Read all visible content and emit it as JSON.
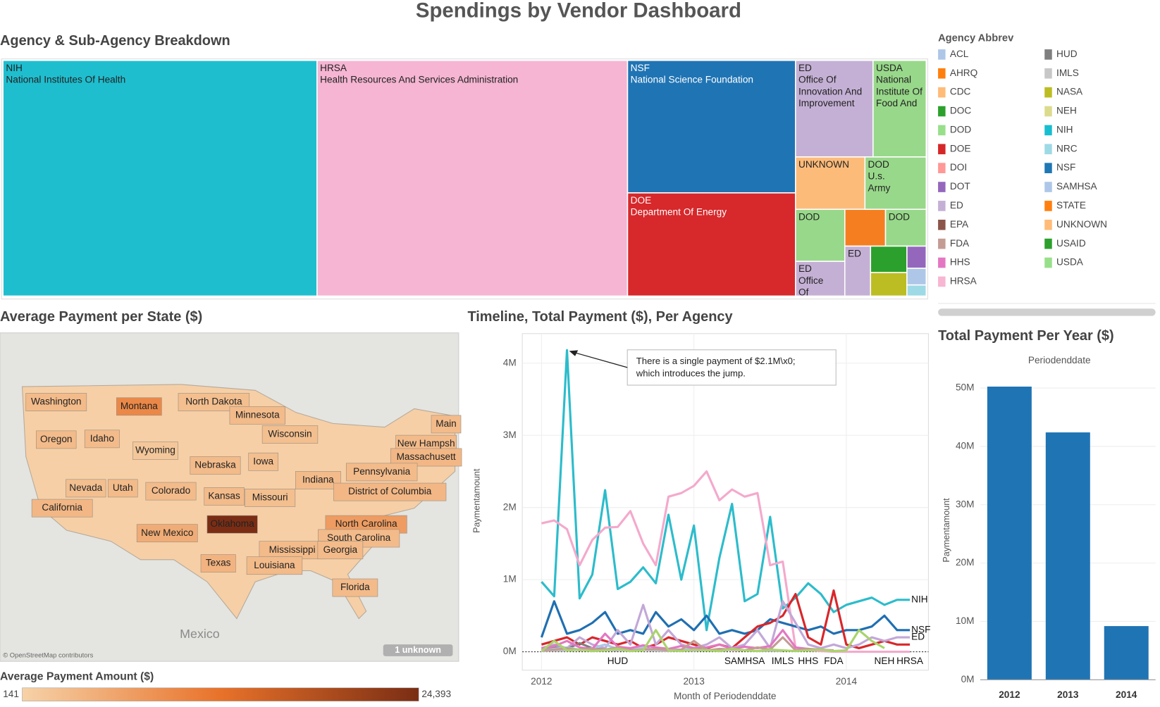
{
  "title": "Spendings by Vendor Dashboard",
  "chart_data": [
    {
      "type": "treemap",
      "title": "Agency & Sub-Agency Breakdown",
      "items": [
        {
          "label": [
            "NIH",
            "National Institutes Of Health"
          ],
          "value": 34600000,
          "color": "#1fbecf",
          "text_color": "#222222"
        },
        {
          "label": [
            "HRSA",
            "Health Resources And Services Administration"
          ],
          "value": 34200000,
          "color": "#f5b5d3",
          "text_color": "#222222"
        },
        {
          "label": [
            "NSF",
            "National Science Foundation"
          ],
          "value": 10400000,
          "color": "#1f74b4",
          "text_color": "#ffffff"
        },
        {
          "label": [
            "DOE",
            "Department Of Energy"
          ],
          "value": 8100000,
          "color": "#d7282b",
          "text_color": "#ffffff"
        },
        {
          "label": [
            "ED",
            "Office Of",
            "Innovation And",
            "Improvement"
          ],
          "value": 3500000,
          "color": "#c5b0d5",
          "text_color": "#222222"
        },
        {
          "label": [
            "USDA",
            "National",
            "Institute Of",
            "Food And"
          ],
          "value": 2400000,
          "color": "#98d88a",
          "text_color": "#222222"
        },
        {
          "label": [
            "UNKNOWN"
          ],
          "value": 1700000,
          "color": "#fdbb7a",
          "text_color": "#222222"
        },
        {
          "label": [
            "DOD",
            "U.s.",
            "Army"
          ],
          "value": 1500000,
          "color": "#98d88a",
          "text_color": "#222222"
        },
        {
          "label": [
            "DOD"
          ],
          "value": 1200000,
          "color": "#98d88a",
          "text_color": "#222222"
        },
        {
          "label": [
            "ED",
            "Office",
            "Of"
          ],
          "value": 800000,
          "color": "#c5b0d5",
          "text_color": "#222222"
        },
        {
          "label": null,
          "value": 700000,
          "color": "#f57f20",
          "text_color": "#222222"
        },
        {
          "label": [
            "DOD"
          ],
          "value": 700000,
          "color": "#98d88a",
          "text_color": "#222222"
        },
        {
          "label": [
            "ED"
          ],
          "value": 600000,
          "color": "#c5b0d5",
          "text_color": "#222222"
        },
        {
          "label": null,
          "value": 450000,
          "color": "#2ca02c",
          "text_color": "#222222"
        },
        {
          "label": null,
          "value": 400000,
          "color": "#bcbd22",
          "text_color": "#222222"
        },
        {
          "label": null,
          "value": 200000,
          "color": "#9467bd",
          "text_color": "#222222"
        },
        {
          "label": null,
          "value": 150000,
          "color": "#aec7e8",
          "text_color": "#222222"
        },
        {
          "label": null,
          "value": 100000,
          "color": "#9edae5",
          "text_color": "#222222"
        }
      ],
      "legend": {
        "title": "Agency Abbrev",
        "items": [
          {
            "name": "ACL",
            "color": "#aec7e8"
          },
          {
            "name": "AHRQ",
            "color": "#ff7f0e"
          },
          {
            "name": "CDC",
            "color": "#ffbb78"
          },
          {
            "name": "DOC",
            "color": "#2ca02c"
          },
          {
            "name": "DOD",
            "color": "#98df8a"
          },
          {
            "name": "DOE",
            "color": "#d62728"
          },
          {
            "name": "DOI",
            "color": "#ff9896"
          },
          {
            "name": "DOT",
            "color": "#9467bd"
          },
          {
            "name": "ED",
            "color": "#c5b0d5"
          },
          {
            "name": "EPA",
            "color": "#8c564b"
          },
          {
            "name": "FDA",
            "color": "#c49c94"
          },
          {
            "name": "HHS",
            "color": "#e377c2"
          },
          {
            "name": "HRSA",
            "color": "#f7b6d2"
          },
          {
            "name": "HUD",
            "color": "#7f7f7f"
          },
          {
            "name": "IMLS",
            "color": "#c7c7c7"
          },
          {
            "name": "NASA",
            "color": "#bcbd22"
          },
          {
            "name": "NEH",
            "color": "#dbdb8d"
          },
          {
            "name": "NIH",
            "color": "#17becf"
          },
          {
            "name": "NRC",
            "color": "#9edae5"
          },
          {
            "name": "NSF",
            "color": "#1f77b4"
          },
          {
            "name": "SAMHSA",
            "color": "#aec7e8"
          },
          {
            "name": "STATE",
            "color": "#ff7f0e"
          },
          {
            "name": "UNKNOWN",
            "color": "#ffbb78"
          },
          {
            "name": "USAID",
            "color": "#2ca02c"
          },
          {
            "name": "USDA",
            "color": "#98df8a"
          }
        ]
      }
    },
    {
      "type": "map",
      "title": "Average Payment per State ($)",
      "states": [
        {
          "name": "Washington",
          "value": 3000
        },
        {
          "name": "Montana",
          "value": 9500
        },
        {
          "name": "North Dakota",
          "value": 2500
        },
        {
          "name": "Minnesota",
          "value": 3000
        },
        {
          "name": "Oregon",
          "value": 3000
        },
        {
          "name": "Idaho",
          "value": 3000
        },
        {
          "name": "Wyoming",
          "value": 1500
        },
        {
          "name": "Wisconsin",
          "value": 2500
        },
        {
          "name": "Main",
          "value": 3000
        },
        {
          "name": "New Hampsh",
          "value": 3000
        },
        {
          "name": "Massachusett",
          "value": 3500
        },
        {
          "name": "Nebraska",
          "value": 3000
        },
        {
          "name": "Iowa",
          "value": 2500
        },
        {
          "name": "Pennsylvania",
          "value": 3000
        },
        {
          "name": "Nevada",
          "value": 2500
        },
        {
          "name": "Utah",
          "value": 3000
        },
        {
          "name": "Colorado",
          "value": 3000
        },
        {
          "name": "Kansas",
          "value": 3000
        },
        {
          "name": "Missouri",
          "value": 2500
        },
        {
          "name": "Indiana",
          "value": 3000
        },
        {
          "name": "District of Columbia",
          "value": 3500
        },
        {
          "name": "California",
          "value": 3500
        },
        {
          "name": "Oklahoma",
          "value": 24393
        },
        {
          "name": "North Carolina",
          "value": 7000
        },
        {
          "name": "New Mexico",
          "value": 5000
        },
        {
          "name": "South Carolina",
          "value": 3000
        },
        {
          "name": "Mississippi",
          "value": 3000
        },
        {
          "name": "Georgia",
          "value": 3000
        },
        {
          "name": "Texas",
          "value": 4000
        },
        {
          "name": "Louisiana",
          "value": 3000
        },
        {
          "name": "Florida",
          "value": 3000
        }
      ],
      "colorscale": [
        "#f6d2a8",
        "#e8722a",
        "#7a2d14"
      ],
      "legend_title": "Average Payment Amount ($)",
      "legend_min": {
        "value": 141,
        "label": "141"
      },
      "legend_max": {
        "value": 24393,
        "label": "24,393"
      },
      "basemap_label": "Mexico",
      "attribution": "© OpenStreetMap contributors",
      "unknown_label": "1 unknown"
    },
    {
      "type": "line",
      "title": "Timeline, Total Payment ($), Per Agency",
      "x_label": "Month of Periodenddate",
      "y_label": "Paymentamount",
      "x": [
        2012,
        2012.083,
        2012.167,
        2012.25,
        2012.333,
        2012.417,
        2012.5,
        2012.583,
        2012.667,
        2012.75,
        2012.833,
        2012.917,
        2013,
        2013.083,
        2013.167,
        2013.25,
        2013.333,
        2013.417,
        2013.5,
        2013.583,
        2013.667,
        2013.75,
        2013.833,
        2013.917,
        2014,
        2014.083,
        2014.167,
        2014.25,
        2014.333,
        2014.417
      ],
      "xlim": [
        2011.874,
        2014.539
      ],
      "xticks": [
        2012,
        2013,
        2014
      ],
      "ylim": [
        -255000,
        4410000
      ],
      "yticks": [
        {
          "value": 0,
          "label": "0M"
        },
        {
          "value": 1000000,
          "label": "1M"
        },
        {
          "value": 2000000,
          "label": "2M"
        },
        {
          "value": 3000000,
          "label": "3M"
        },
        {
          "value": 4000000,
          "label": "4M"
        }
      ],
      "grid": true,
      "series": [
        {
          "name": "NIH",
          "color": "#2cbccb",
          "values": [
            970000,
            770000,
            4180000,
            740000,
            1070000,
            2240000,
            870000,
            970000,
            1170000,
            950000,
            1900000,
            1000000,
            1750000,
            300000,
            1300000,
            2050000,
            700000,
            800000,
            1870000,
            600000,
            750000,
            950000,
            800000,
            550000,
            650000,
            700000,
            750000,
            650000,
            720000,
            720000
          ]
        },
        {
          "name": "HRSA",
          "color": "#f4a9cc",
          "values": [
            1780000,
            1820000,
            1700000,
            1200000,
            1550000,
            1720000,
            1730000,
            1950000,
            1500000,
            1200000,
            2150000,
            2200000,
            2300000,
            2500000,
            2100000,
            2250000,
            2150000,
            2200000,
            1200000,
            1250000,
            50000,
            20000,
            10000,
            0,
            0,
            0,
            0,
            0,
            0,
            0
          ]
        },
        {
          "name": "NSF",
          "color": "#1f6fb2",
          "values": [
            200000,
            700000,
            250000,
            300000,
            400000,
            550000,
            250000,
            300000,
            250000,
            550000,
            350000,
            450000,
            300000,
            500000,
            250000,
            300000,
            250000,
            300000,
            450000,
            400000,
            350000,
            300000,
            350000,
            250000,
            300000,
            300000,
            350000,
            500000,
            300000,
            300000
          ]
        },
        {
          "color": "#d9262a",
          "values": [
            100000,
            150000,
            200000,
            100000,
            200000,
            150000,
            100000,
            150000,
            50000,
            100000,
            200000,
            150000,
            100000,
            50000,
            100000,
            50000,
            200000,
            350000,
            400000,
            500000,
            800000,
            200000,
            100000,
            850000,
            100000,
            50000,
            100000,
            150000,
            100000,
            100000
          ]
        },
        {
          "name": "ED",
          "color": "#c2a8d8",
          "values": [
            50000,
            100000,
            50000,
            200000,
            100000,
            50000,
            300000,
            100000,
            650000,
            100000,
            300000,
            100000,
            50000,
            100000,
            200000,
            50000,
            100000,
            300000,
            50000,
            700000,
            400000,
            100000,
            50000,
            100000,
            50000,
            100000,
            200000,
            150000,
            200000,
            200000
          ]
        },
        {
          "name": "HUD",
          "color": "#7f7f7f",
          "values": [
            30000,
            60000,
            40000,
            120000,
            50000,
            30000,
            20000,
            null,
            null,
            null,
            null,
            null,
            null,
            null,
            null,
            null,
            null,
            null,
            null,
            null,
            null,
            null,
            null,
            null,
            null,
            null,
            null,
            null,
            null,
            null
          ]
        },
        {
          "name": "SAMHSA",
          "color": "#aec7e8",
          "values": [
            20000,
            40000,
            60000,
            30000,
            50000,
            100000,
            40000,
            30000,
            60000,
            20000,
            40000,
            30000,
            50000,
            30000,
            20000,
            40000,
            20000,
            null,
            null,
            null,
            null,
            null,
            null,
            null,
            null,
            null,
            null,
            null,
            null,
            null
          ]
        },
        {
          "name": "IMLS",
          "color": "#bdbdbd",
          "values": [
            10000,
            20000,
            15000,
            30000,
            10000,
            20000,
            25000,
            10000,
            30000,
            15000,
            10000,
            20000,
            15000,
            25000,
            10000,
            30000,
            20000,
            10000,
            15000,
            10000,
            null,
            null,
            null,
            null,
            null,
            null,
            null,
            null,
            null,
            null
          ]
        },
        {
          "name": "HHS",
          "color": "#e377c2",
          "values": [
            50000,
            80000,
            150000,
            60000,
            40000,
            250000,
            70000,
            50000,
            90000,
            60000,
            40000,
            80000,
            50000,
            60000,
            100000,
            40000,
            70000,
            50000,
            80000,
            300000,
            60000,
            40000,
            null,
            null,
            null,
            null,
            null,
            null,
            null,
            null
          ]
        },
        {
          "name": "FDA",
          "color": "#c49c94",
          "values": [
            20000,
            30000,
            50000,
            20000,
            40000,
            30000,
            60000,
            20000,
            30000,
            40000,
            20000,
            30000,
            150000,
            20000,
            40000,
            30000,
            20000,
            60000,
            30000,
            200000,
            20000,
            40000,
            30000,
            20000,
            null,
            null,
            null,
            null,
            null,
            null
          ]
        },
        {
          "name": "NEH",
          "color": "#a9d46a",
          "values": [
            10000,
            150000,
            20000,
            30000,
            10000,
            20000,
            40000,
            10000,
            20000,
            300000,
            20000,
            10000,
            30000,
            20000,
            10000,
            40000,
            20000,
            10000,
            30000,
            20000,
            10000,
            20000,
            30000,
            10000,
            20000,
            300000,
            150000,
            50000,
            null,
            null
          ]
        }
      ],
      "annotation": [
        "There is a single payment of $2.1M\\x0;",
        "which introduces the jump."
      ]
    },
    {
      "type": "bar",
      "title": "Total Payment Per Year ($)",
      "subtitle": "Periodenddate",
      "y_label": "Paymentamount",
      "categories": [
        "2012",
        "2013",
        "2014"
      ],
      "values": [
        50250000,
        42400000,
        9200000
      ],
      "color": "#1f74b4",
      "ylim": [
        0,
        53400000
      ],
      "yticks": [
        {
          "value": 0,
          "label": "0M"
        },
        {
          "value": 10000000,
          "label": "10M"
        },
        {
          "value": 20000000,
          "label": "20M"
        },
        {
          "value": 30000000,
          "label": "30M"
        },
        {
          "value": 40000000,
          "label": "40M"
        },
        {
          "value": 50000000,
          "label": "50M"
        }
      ],
      "grid": true
    }
  ]
}
